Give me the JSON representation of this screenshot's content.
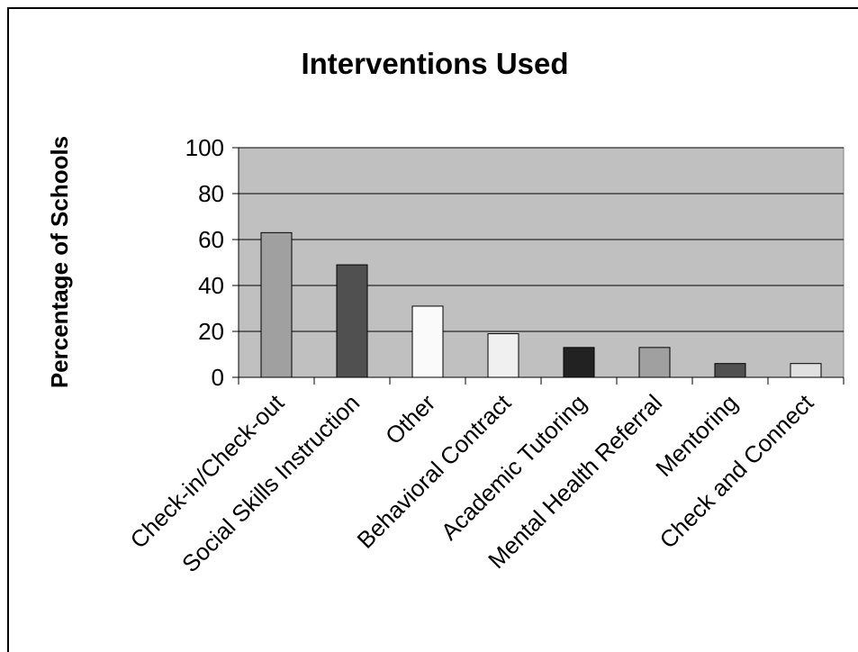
{
  "chart_data": {
    "type": "bar",
    "title": "Interventions Used",
    "xlabel": "",
    "ylabel": "Percentage of Schools",
    "ylim": [
      0,
      100
    ],
    "yticks": [
      0,
      20,
      40,
      60,
      80,
      100
    ],
    "grid": true,
    "legend": "none",
    "categories": [
      "Check-in/Check-out",
      "Social Skills Instruction",
      "Other",
      "Behavioral Contract",
      "Academic Tutoring",
      "Mental Health Referral",
      "Mentoring",
      "Check and Connect"
    ],
    "values": [
      63,
      49,
      31,
      19,
      13,
      13,
      6,
      6
    ],
    "colors": [
      "#a0a0a0",
      "#505050",
      "#fafafa",
      "#f0f0f0",
      "#222222",
      "#a0a0a0",
      "#505050",
      "#e0e0e0"
    ],
    "plot_background": "#c0c0c0"
  }
}
